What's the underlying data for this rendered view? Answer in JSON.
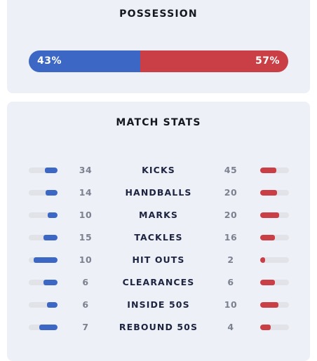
{
  "possession": {
    "title": "POSSESSION",
    "home_pct": "43%",
    "away_pct": "57%",
    "home_fraction": 0.43,
    "home_color": "#3d67c5",
    "away_color": "#ca3f45"
  },
  "match_stats": {
    "title": "MATCH STATS",
    "rows": [
      {
        "label": "KICKS",
        "home": "34",
        "away": "45"
      },
      {
        "label": "HANDBALLS",
        "home": "14",
        "away": "20"
      },
      {
        "label": "MARKS",
        "home": "10",
        "away": "20"
      },
      {
        "label": "TACKLES",
        "home": "15",
        "away": "16"
      },
      {
        "label": "HIT OUTS",
        "home": "10",
        "away": "2"
      },
      {
        "label": "CLEARANCES",
        "home": "6",
        "away": "6"
      },
      {
        "label": "INSIDE 50S",
        "home": "6",
        "away": "10"
      },
      {
        "label": "REBOUND 50S",
        "home": "7",
        "away": "4"
      }
    ]
  }
}
